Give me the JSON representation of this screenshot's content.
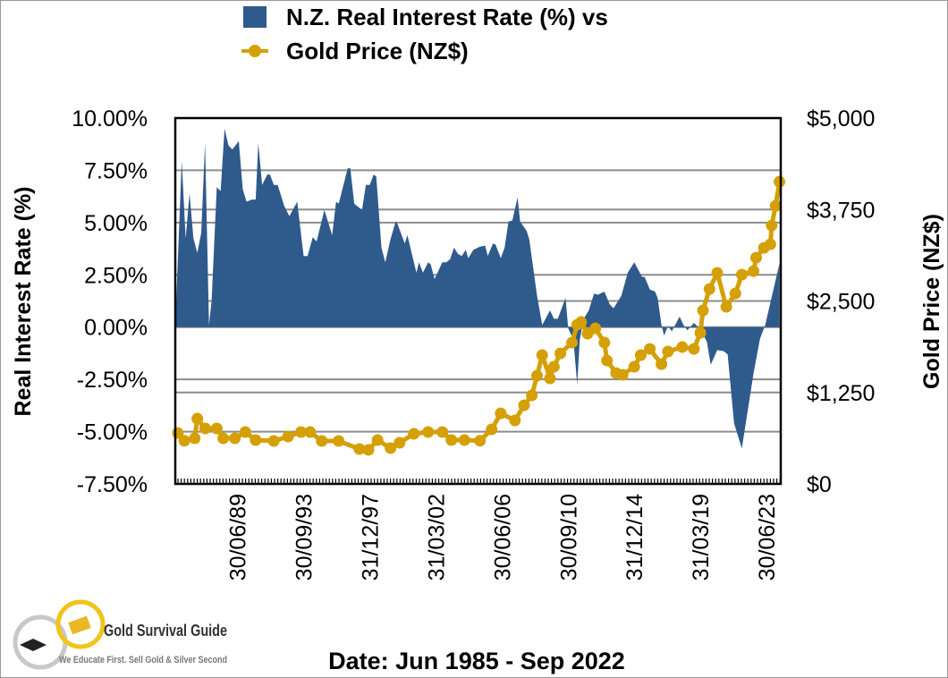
{
  "chart_data": {
    "type": "area+line",
    "title_line1": "N.Z. Real Interest Rate (%) vs",
    "title_line2": "Gold Price (NZ$)",
    "xlabel": "Date: Jun 1985 - Sep 2022",
    "ylabel_left": "Real Interest Rate (%)",
    "ylabel_right": "Gold Price (NZ$)",
    "ylim_left": [
      -7.5,
      10
    ],
    "ylim_right": [
      0,
      5000
    ],
    "xlim": [
      "1985-06",
      "2024-05"
    ],
    "grid": true,
    "legend_placement": "top",
    "left_ticks": [
      "10.00%",
      "7.50%",
      "5.00%",
      "2.50%",
      "0.00%",
      "-2.50%",
      "-5.00%",
      "-7.50%"
    ],
    "left_tick_values": [
      10,
      7.5,
      5,
      2.5,
      0,
      -2.5,
      -5,
      -7.5
    ],
    "right_ticks": [
      "$5,000",
      "$3,750",
      "$2,500",
      "$1,250",
      "$0"
    ],
    "right_tick_values": [
      5000,
      3750,
      2500,
      1250,
      0
    ],
    "x_ticks": [
      {
        "label": "30/06/89",
        "date": "1989-06"
      },
      {
        "label": "30/09/93",
        "date": "1993-09"
      },
      {
        "label": "31/12/97",
        "date": "1997-12"
      },
      {
        "label": "31/03/02",
        "date": "2002-03"
      },
      {
        "label": "30/06/06",
        "date": "2006-06"
      },
      {
        "label": "30/09/10",
        "date": "2010-09"
      },
      {
        "label": "31/12/14",
        "date": "2014-12"
      },
      {
        "label": "31/03/19",
        "date": "2019-03"
      },
      {
        "label": "30/06/23",
        "date": "2023-06"
      }
    ],
    "series": [
      {
        "name": "N.Z. Real Interest Rate (%)",
        "type": "area",
        "axis": "left",
        "color": "#2f5a8c",
        "points": [
          [
            "1985-06",
            0.1
          ],
          [
            "1985-11",
            7.96
          ],
          [
            "1986-02",
            4.24
          ],
          [
            "1986-05",
            6.4
          ],
          [
            "1986-08",
            4.25
          ],
          [
            "1986-11",
            3.55
          ],
          [
            "1987-02",
            4.5
          ],
          [
            "1987-05",
            8.8
          ],
          [
            "1987-08",
            0.1
          ],
          [
            "1987-10",
            1.25
          ],
          [
            "1988-02",
            6.7
          ],
          [
            "1988-05",
            6.5
          ],
          [
            "1988-08",
            9.5
          ],
          [
            "1988-11",
            8.7
          ],
          [
            "1989-02",
            8.5
          ],
          [
            "1989-07",
            8.9
          ],
          [
            "1989-10",
            6.6
          ],
          [
            "1990-01",
            6.0
          ],
          [
            "1990-05",
            6.1
          ],
          [
            "1990-08",
            6.1
          ],
          [
            "1990-10",
            8.8
          ],
          [
            "1991-01",
            6.8
          ],
          [
            "1991-05",
            7.3
          ],
          [
            "1991-07",
            7.3
          ],
          [
            "1991-10",
            6.8
          ],
          [
            "1992-01",
            6.8
          ],
          [
            "1992-06",
            5.8
          ],
          [
            "1992-10",
            5.3
          ],
          [
            "1993-04",
            6.0
          ],
          [
            "1993-09",
            3.4
          ],
          [
            "1993-12",
            3.4
          ],
          [
            "1994-04",
            4.3
          ],
          [
            "1994-07",
            4.1
          ],
          [
            "1995-01",
            5.6
          ],
          [
            "1995-07",
            4.4
          ],
          [
            "1995-10",
            6.0
          ],
          [
            "1995-12",
            5.9
          ],
          [
            "1996-07",
            7.6
          ],
          [
            "1996-09",
            7.6
          ],
          [
            "1996-12",
            5.9
          ],
          [
            "1997-06",
            5.6
          ],
          [
            "1997-09",
            6.8
          ],
          [
            "1997-12",
            6.8
          ],
          [
            "1998-03",
            7.3
          ],
          [
            "1998-05",
            7.2
          ],
          [
            "1998-09",
            3.8
          ],
          [
            "1998-12",
            3.1
          ],
          [
            "1999-04",
            4.2
          ],
          [
            "1999-08",
            5.05
          ],
          [
            "1999-09",
            5.0
          ],
          [
            "2000-03",
            4.0
          ],
          [
            "2000-05",
            4.4
          ],
          [
            "2000-12",
            2.6
          ],
          [
            "2001-02",
            3.1
          ],
          [
            "2001-05",
            2.6
          ],
          [
            "2001-09",
            3.1
          ],
          [
            "2001-11",
            3.0
          ],
          [
            "2002-02",
            2.3
          ],
          [
            "2002-08",
            3.1
          ],
          [
            "2002-11",
            3.1
          ],
          [
            "2003-02",
            3.25
          ],
          [
            "2003-05",
            3.8
          ],
          [
            "2003-08",
            3.5
          ],
          [
            "2003-11",
            3.4
          ],
          [
            "2004-02",
            3.7
          ],
          [
            "2004-04",
            3.3
          ],
          [
            "2004-08",
            3.7
          ],
          [
            "2005-01",
            3.85
          ],
          [
            "2005-05",
            3.9
          ],
          [
            "2005-07",
            3.4
          ],
          [
            "2005-11",
            4.0
          ],
          [
            "2006-01",
            3.95
          ],
          [
            "2006-05",
            3.3
          ],
          [
            "2006-08",
            3.8
          ],
          [
            "2006-11",
            5.05
          ],
          [
            "2007-02",
            5.1
          ],
          [
            "2007-06",
            6.2
          ],
          [
            "2007-08",
            5.05
          ],
          [
            "2008-01",
            4.6
          ],
          [
            "2008-03",
            4.2
          ],
          [
            "2008-09",
            1.5
          ],
          [
            "2009-01",
            0.1
          ],
          [
            "2009-07",
            0.8
          ],
          [
            "2009-10",
            0.4
          ],
          [
            "2010-01",
            0.4
          ],
          [
            "2010-07",
            1.4
          ],
          [
            "2010-09",
            -0.05
          ],
          [
            "2011-01",
            -0.6
          ],
          [
            "2011-04",
            -2.74
          ],
          [
            "2011-06",
            -0.6
          ],
          [
            "2011-09",
            0.4
          ],
          [
            "2012-01",
            0.8
          ],
          [
            "2012-05",
            1.6
          ],
          [
            "2012-08",
            1.55
          ],
          [
            "2013-01",
            1.7
          ],
          [
            "2013-05",
            1.1
          ],
          [
            "2013-08",
            0.9
          ],
          [
            "2014-02",
            1.5
          ],
          [
            "2014-07",
            2.6
          ],
          [
            "2014-12",
            3.1
          ],
          [
            "2015-06",
            2.4
          ],
          [
            "2015-08",
            2.4
          ],
          [
            "2015-12",
            1.8
          ],
          [
            "2016-04",
            1.7
          ],
          [
            "2016-06",
            1.4
          ],
          [
            "2016-09",
            0.1
          ],
          [
            "2016-11",
            -0.4
          ],
          [
            "2017-02",
            0.05
          ],
          [
            "2017-05",
            -0.2
          ],
          [
            "2017-11",
            0.5
          ],
          [
            "2018-02",
            0.1
          ],
          [
            "2018-05",
            -0.15
          ],
          [
            "2018-10",
            0.2
          ],
          [
            "2019-03",
            -0.1
          ],
          [
            "2019-08",
            -0.7
          ],
          [
            "2019-11",
            -1.8
          ],
          [
            "2020-04",
            -1.1
          ],
          [
            "2020-09",
            -1.15
          ],
          [
            "2020-12",
            -1.3
          ],
          [
            "2021-05",
            -4.6
          ],
          [
            "2021-11",
            -5.8
          ],
          [
            "2022-08",
            -2.2
          ],
          [
            "2023-01",
            -0.55
          ],
          [
            "2023-05",
            0.1
          ],
          [
            "2024-04",
            3.05
          ]
        ]
      },
      {
        "name": "Gold Price (NZ$)",
        "type": "line",
        "axis": "right",
        "color": "#d4a006",
        "points": [
          [
            "1985-08",
            695
          ],
          [
            "1986-01",
            590
          ],
          [
            "1986-09",
            623
          ],
          [
            "1986-11",
            892
          ],
          [
            "1987-05",
            758
          ],
          [
            "1988-02",
            758
          ],
          [
            "1988-07",
            623
          ],
          [
            "1989-04",
            623
          ],
          [
            "1989-12",
            709
          ],
          [
            "1990-08",
            599
          ],
          [
            "1991-10",
            587
          ],
          [
            "1992-09",
            648
          ],
          [
            "1993-07",
            709
          ],
          [
            "1994-02",
            709
          ],
          [
            "1994-11",
            587
          ],
          [
            "1995-12",
            587
          ],
          [
            "1997-04",
            477
          ],
          [
            "1997-11",
            464
          ],
          [
            "1998-06",
            599
          ],
          [
            "1999-04",
            489
          ],
          [
            "1999-11",
            562
          ],
          [
            "2000-10",
            684
          ],
          [
            "2001-09",
            709
          ],
          [
            "2002-08",
            709
          ],
          [
            "2003-03",
            599
          ],
          [
            "2004-01",
            599
          ],
          [
            "2005-01",
            590
          ],
          [
            "2005-10",
            745
          ],
          [
            "2006-05",
            965
          ],
          [
            "2007-04",
            868
          ],
          [
            "2007-11",
            1075
          ],
          [
            "2008-05",
            1210
          ],
          [
            "2008-09",
            1479
          ],
          [
            "2009-01",
            1760
          ],
          [
            "2009-07",
            1442
          ],
          [
            "2009-10",
            1601
          ],
          [
            "2010-03",
            1784
          ],
          [
            "2010-12",
            1931
          ],
          [
            "2011-04",
            2175
          ],
          [
            "2011-07",
            2212
          ],
          [
            "2011-12",
            2053
          ],
          [
            "2012-06",
            2126
          ],
          [
            "2013-01",
            1931
          ],
          [
            "2013-03",
            1686
          ],
          [
            "2013-10",
            1515
          ],
          [
            "2014-03",
            1491
          ],
          [
            "2014-12",
            1601
          ],
          [
            "2015-05",
            1760
          ],
          [
            "2015-12",
            1845
          ],
          [
            "2016-09",
            1637
          ],
          [
            "2017-02",
            1809
          ],
          [
            "2018-01",
            1870
          ],
          [
            "2018-10",
            1845
          ],
          [
            "2019-03",
            2065
          ],
          [
            "2019-05",
            2371
          ],
          [
            "2019-10",
            2664
          ],
          [
            "2020-04",
            2884
          ],
          [
            "2020-11",
            2420
          ],
          [
            "2021-06",
            2603
          ],
          [
            "2021-11",
            2860
          ],
          [
            "2022-08",
            2908
          ],
          [
            "2022-10",
            3092
          ],
          [
            "2023-04",
            3226
          ],
          [
            "2023-09",
            3275
          ],
          [
            "2023-10",
            3532
          ],
          [
            "2024-01",
            3800
          ],
          [
            "2024-04",
            4130
          ]
        ]
      }
    ]
  },
  "logo": {
    "name": "Gold Survival Guide",
    "tagline": "We Educate First. Sell Gold & Silver Second"
  }
}
